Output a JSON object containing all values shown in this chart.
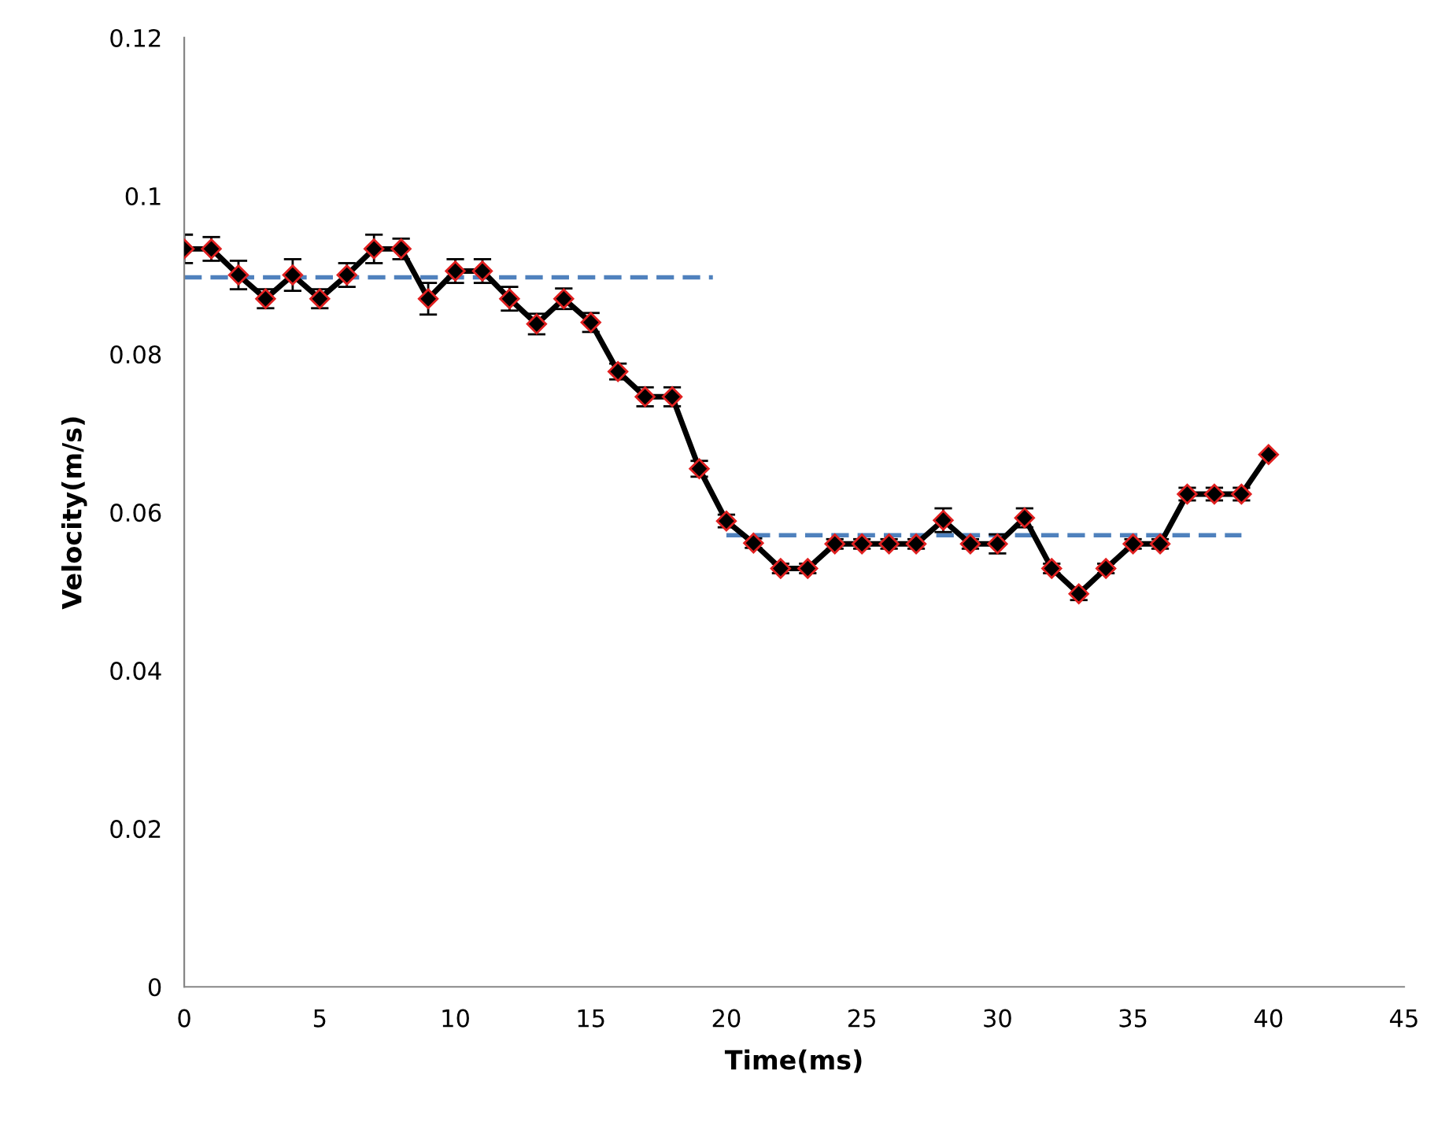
{
  "chart_data": {
    "type": "line",
    "xlabel": "Time(ms)",
    "ylabel": "Velocity(m/s)",
    "xlim": [
      0,
      45
    ],
    "xticks": [
      0,
      5,
      10,
      15,
      20,
      25,
      30,
      35,
      40,
      45
    ],
    "ylim": [
      0,
      0.12
    ],
    "yticks": [
      0,
      0.02,
      0.04,
      0.06,
      0.08,
      0.1,
      0.12
    ],
    "grid": false,
    "legend": false,
    "series": [
      {
        "color": "#000000",
        "marker": "diamond",
        "line_style": "solid",
        "x": [
          0,
          1,
          2,
          3,
          4,
          5,
          6,
          7,
          8,
          9,
          10,
          11,
          12,
          13,
          14,
          15,
          16,
          17,
          18,
          19,
          20,
          21,
          22,
          23,
          24,
          25,
          26,
          27,
          28,
          29,
          30,
          31,
          32,
          33,
          34,
          35,
          36,
          37,
          38,
          39,
          40
        ],
        "values": [
          0.0933,
          0.0933,
          0.09,
          0.087,
          0.09,
          0.087,
          0.09,
          0.0933,
          0.0933,
          0.087,
          0.0905,
          0.0905,
          0.087,
          0.0838,
          0.087,
          0.084,
          0.0778,
          0.0746,
          0.0746,
          0.0655,
          0.0589,
          0.0561,
          0.0529,
          0.0529,
          0.056,
          0.056,
          0.056,
          0.056,
          0.059,
          0.056,
          0.056,
          0.0593,
          0.0529,
          0.0497,
          0.0529,
          0.056,
          0.056,
          0.0623,
          0.0623,
          0.0623,
          0.0673
        ],
        "errors": [
          0.0018,
          0.0015,
          0.0018,
          0.0012,
          0.002,
          0.0012,
          0.0015,
          0.0018,
          0.0013,
          0.002,
          0.0015,
          0.0015,
          0.0015,
          0.0013,
          0.0013,
          0.0012,
          0.001,
          0.0012,
          0.0012,
          0.001,
          0.0008,
          0.0006,
          0.0006,
          0.0006,
          0.0006,
          0.0006,
          0.0006,
          0.0006,
          0.0015,
          0.0006,
          0.0012,
          0.0012,
          0.0006,
          0.0008,
          0.0006,
          0.0006,
          0.0006,
          0.0008,
          0.0008,
          0.0008,
          null
        ]
      },
      {
        "color": "#4f81bd",
        "marker": "none",
        "line_style": "dashed",
        "x": [
          0,
          19.5
        ],
        "values": [
          0.0897,
          0.0897
        ]
      },
      {
        "color": "#4f81bd",
        "marker": "none",
        "line_style": "dashed",
        "x": [
          20,
          39
        ],
        "values": [
          0.0571,
          0.0571
        ]
      }
    ]
  }
}
